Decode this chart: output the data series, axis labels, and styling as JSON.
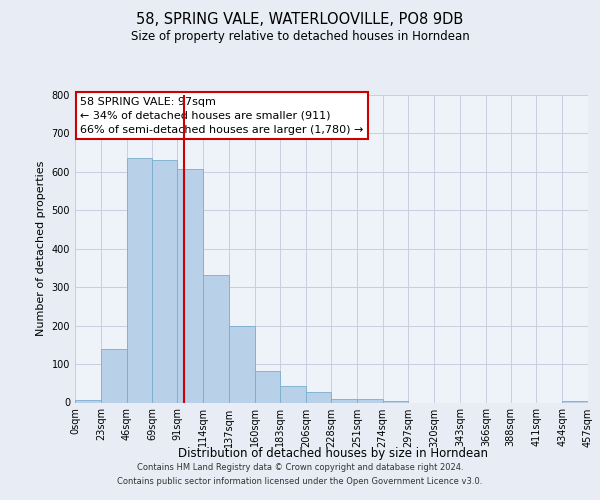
{
  "title": "58, SPRING VALE, WATERLOOVILLE, PO8 9DB",
  "subtitle": "Size of property relative to detached houses in Horndean",
  "xlabel": "Distribution of detached houses by size in Horndean",
  "ylabel": "Number of detached properties",
  "bin_edges": [
    0,
    23,
    46,
    69,
    91,
    114,
    137,
    160,
    183,
    206,
    228,
    251,
    274,
    297,
    320,
    343,
    366,
    388,
    411,
    434,
    457
  ],
  "bin_labels": [
    "0sqm",
    "23sqm",
    "46sqm",
    "69sqm",
    "91sqm",
    "114sqm",
    "137sqm",
    "160sqm",
    "183sqm",
    "206sqm",
    "228sqm",
    "251sqm",
    "274sqm",
    "297sqm",
    "320sqm",
    "343sqm",
    "366sqm",
    "388sqm",
    "411sqm",
    "434sqm",
    "457sqm"
  ],
  "bar_heights": [
    7,
    140,
    635,
    630,
    608,
    333,
    200,
    82,
    44,
    27,
    10,
    10,
    5,
    0,
    0,
    0,
    0,
    0,
    0,
    5
  ],
  "bar_color": "#b8d0e8",
  "bar_edge_color": "#7aadcf",
  "vline_x": 97,
  "vline_color": "#cc0000",
  "annotation_line1": "58 SPRING VALE: 97sqm",
  "annotation_line2": "← 34% of detached houses are smaller (911)",
  "annotation_line3": "66% of semi-detached houses are larger (1,780) →",
  "annotation_box_color": "#ffffff",
  "annotation_box_edge_color": "#cc0000",
  "ylim": [
    0,
    800
  ],
  "yticks": [
    0,
    100,
    200,
    300,
    400,
    500,
    600,
    700,
    800
  ],
  "footer_line1": "Contains HM Land Registry data © Crown copyright and database right 2024.",
  "footer_line2": "Contains public sector information licensed under the Open Government Licence v3.0.",
  "bg_color": "#e8edf5",
  "plot_bg_color": "#eef3fa",
  "grid_color": "#c8cedd",
  "title_fontsize": 10.5,
  "subtitle_fontsize": 8.5,
  "ylabel_fontsize": 8,
  "xlabel_fontsize": 8.5,
  "tick_fontsize": 7,
  "footer_fontsize": 6,
  "annotation_fontsize": 8
}
